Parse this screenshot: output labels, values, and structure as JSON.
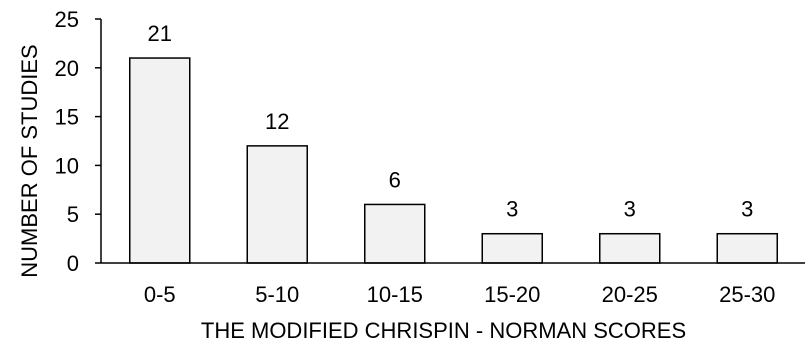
{
  "chart_data": {
    "type": "bar",
    "categories": [
      "0-5",
      "5-10",
      "10-15",
      "15-20",
      "20-25",
      "25-30"
    ],
    "values": [
      21,
      12,
      6,
      3,
      3,
      3
    ],
    "data_labels": [
      "21",
      "12",
      "6",
      "3",
      "3",
      "3"
    ],
    "title": "",
    "xlabel": "THE MODIFIED CHRISPIN - NORMAN SCORES",
    "ylabel": "NUMBER OF STUDIES",
    "ylim": [
      0,
      25
    ],
    "yticks": [
      0,
      5,
      10,
      15,
      20,
      25
    ],
    "grid": false,
    "legend": "none",
    "colors": {
      "bar_fill": "#f2f2f2",
      "bar_stroke": "#000000",
      "axis": "#000000",
      "text": "#000000"
    }
  }
}
